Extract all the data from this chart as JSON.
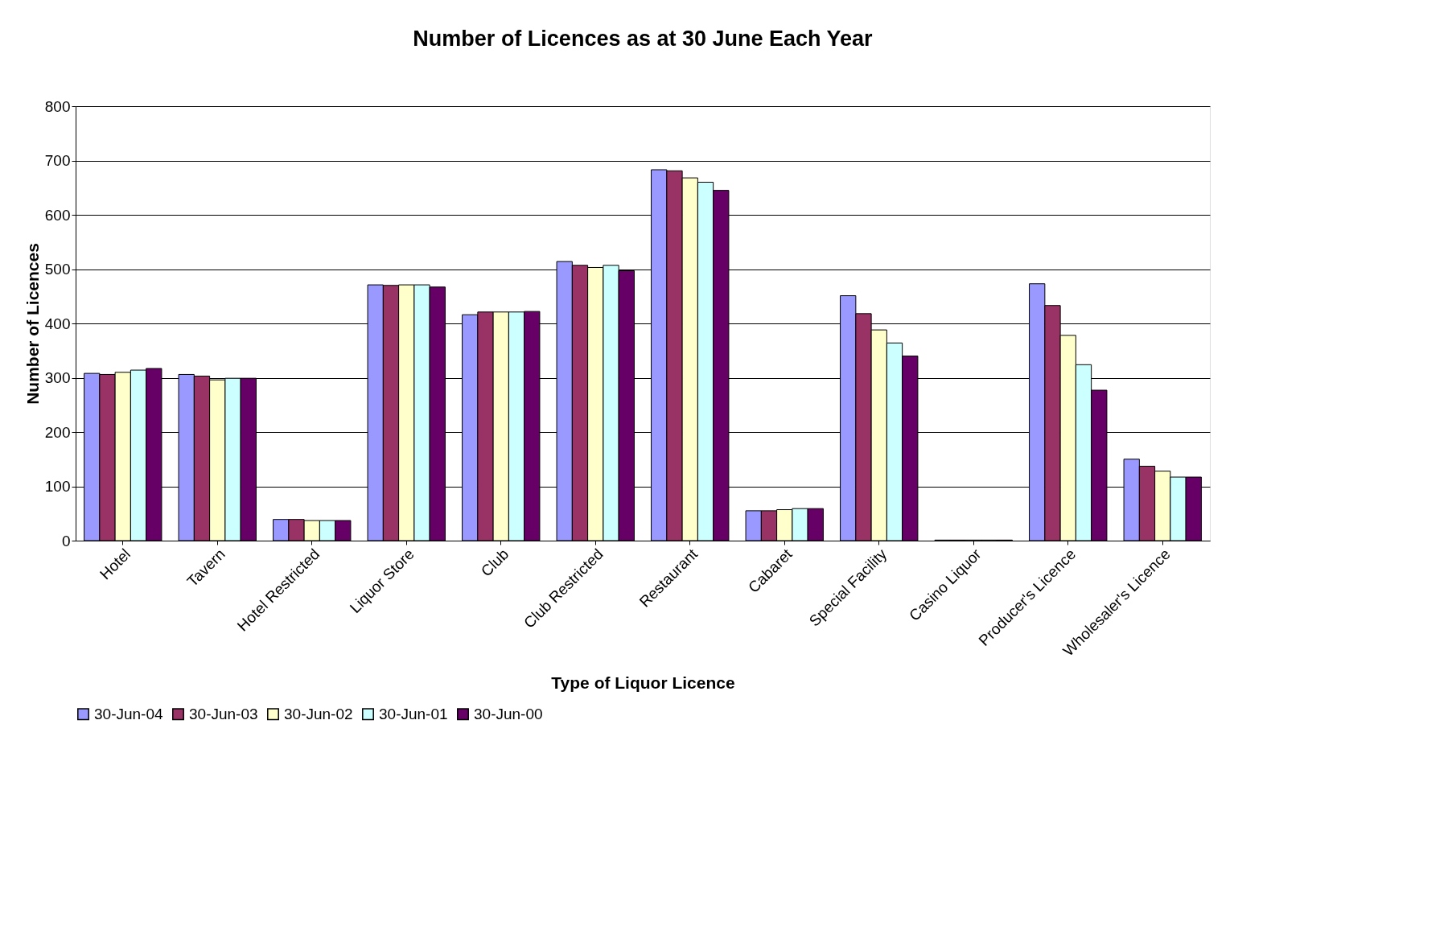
{
  "chart_data": {
    "type": "bar",
    "title": "Number of Licences as at 30 June Each Year",
    "xlabel": "Type of Liquor Licence",
    "ylabel": "Number of Licences",
    "categories": [
      "Hotel",
      "Tavern",
      "Hotel Restricted",
      "Liquor Store",
      "Club",
      "Club Restricted",
      "Restaurant",
      "Cabaret",
      "Special Facility",
      "Casino Liquor",
      "Producer's Licence",
      "Wholesaler's Licence"
    ],
    "series": [
      {
        "name": "30-Jun-04",
        "color": "#9999ff",
        "values": [
          308,
          306,
          39,
          471,
          416,
          514,
          683,
          55,
          451,
          1,
          473,
          150
        ]
      },
      {
        "name": "30-Jun-03",
        "color": "#993366",
        "values": [
          306,
          303,
          39,
          470,
          421,
          507,
          681,
          55,
          418,
          1,
          433,
          137
        ]
      },
      {
        "name": "30-Jun-02",
        "color": "#ffffcc",
        "values": [
          310,
          296,
          37,
          471,
          421,
          503,
          668,
          57,
          388,
          1,
          378,
          128
        ]
      },
      {
        "name": "30-Jun-01",
        "color": "#ccffff",
        "values": [
          314,
          299,
          37,
          471,
          421,
          507,
          660,
          59,
          364,
          1,
          324,
          117
        ]
      },
      {
        "name": "30-Jun-00",
        "color": "#660066",
        "values": [
          317,
          299,
          37,
          467,
          422,
          497,
          645,
          59,
          340,
          1,
          277,
          117
        ]
      }
    ],
    "ylim": [
      0,
      800
    ],
    "yticks": [
      0,
      100,
      200,
      300,
      400,
      500,
      600,
      700,
      800
    ],
    "grid": "y",
    "legend": "bottom"
  }
}
